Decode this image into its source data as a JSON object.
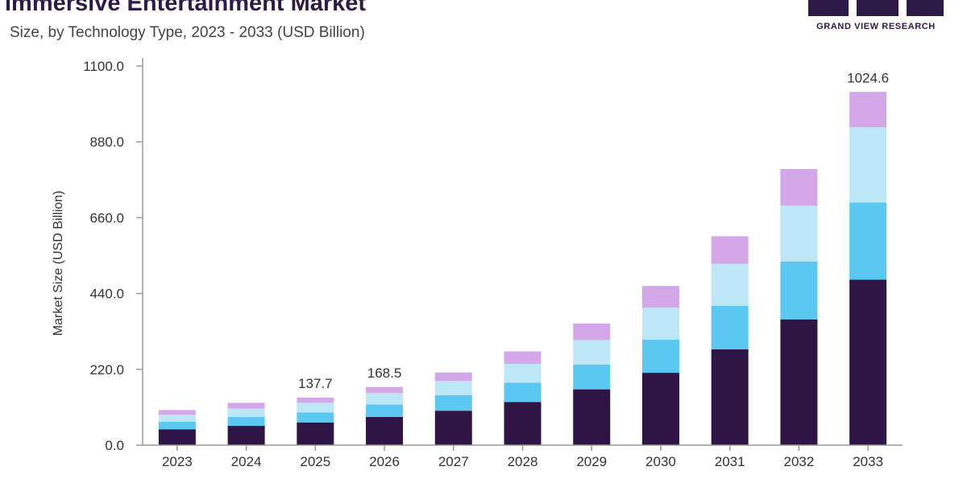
{
  "header": {
    "title": "Immersive Entertainment Market",
    "subtitle": "Size, by Technology Type, 2023 - 2033 (USD Billion)"
  },
  "logo": {
    "text": "GRAND VIEW RESEARCH"
  },
  "colors": {
    "series": [
      "#2f1446",
      "#5bc8f2",
      "#bde6f7",
      "#d4a8e8"
    ],
    "axis": "#999999",
    "text": "#333333"
  },
  "chart_data": {
    "type": "bar",
    "stacked": true,
    "title": "",
    "xlabel": "",
    "ylabel": "Market Size (USD Billion)",
    "ylim": [
      0,
      1100
    ],
    "yticks": [
      0,
      220,
      440,
      660,
      880,
      1100
    ],
    "ytick_labels": [
      "0.0",
      "220.0",
      "440.0",
      "660.0",
      "880.0",
      "1100.0"
    ],
    "grid": false,
    "categories": [
      "2023",
      "2024",
      "2025",
      "2026",
      "2027",
      "2028",
      "2029",
      "2030",
      "2031",
      "2032",
      "2033"
    ],
    "series": [
      {
        "values": [
          46,
          56,
          66,
          82,
          100,
          125,
          162,
          210,
          278,
          365,
          480
        ]
      },
      {
        "values": [
          22,
          26,
          29,
          36,
          45,
          56,
          72,
          96,
          126,
          168,
          224
        ]
      },
      {
        "values": [
          20,
          24,
          28,
          33,
          41,
          55,
          71,
          93,
          122,
          162,
          218
        ]
      },
      {
        "values": [
          14,
          17,
          15,
          18,
          25,
          36,
          48,
          63,
          80,
          106,
          103
        ]
      }
    ],
    "totals": [
      null,
      null,
      137.7,
      168.5,
      null,
      null,
      null,
      null,
      null,
      null,
      1024.6
    ],
    "total_labels": [
      "",
      "",
      "137.7",
      "168.5",
      "",
      "",
      "",
      "",
      "",
      "",
      "1024.6"
    ]
  }
}
